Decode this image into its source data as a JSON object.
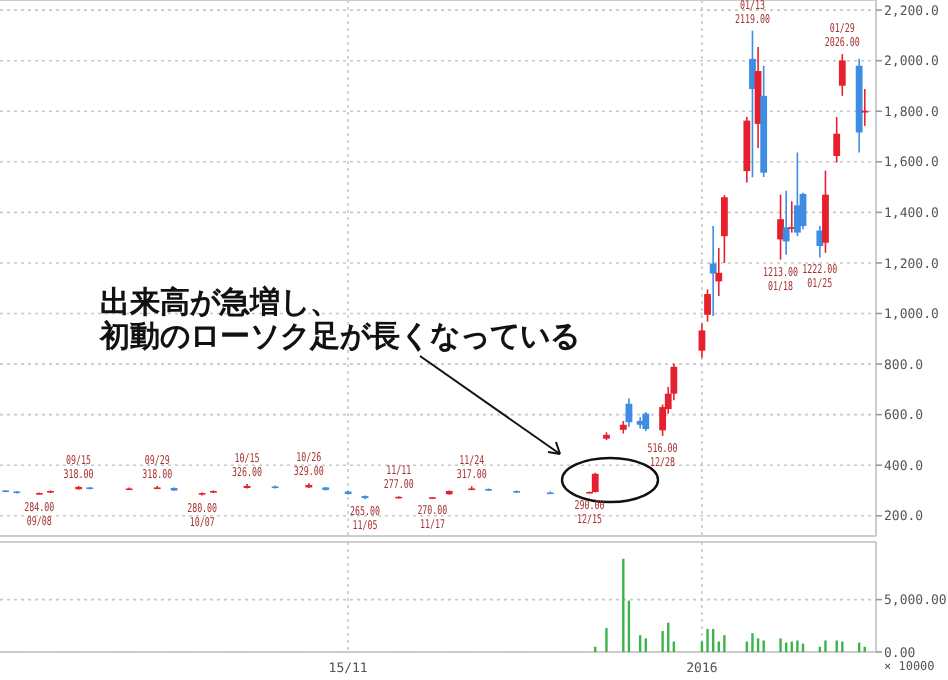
{
  "chart_data": [
    {
      "type": "candlestick",
      "xlim": [
        "2015-09-01",
        "2016-02-04"
      ],
      "xticks": [
        {
          "value": "2015-11-02",
          "label": null
        },
        {
          "value": "2016-01-04",
          "label": null
        }
      ],
      "ylim": [
        120,
        2240
      ],
      "yticks": [
        {
          "value": 200,
          "label": "200.0"
        },
        {
          "value": 400,
          "label": "400.0"
        },
        {
          "value": 600,
          "label": "600.0"
        },
        {
          "value": 800,
          "label": "800.0"
        },
        {
          "value": 1000,
          "label": "1,000.0"
        },
        {
          "value": 1200,
          "label": "1,200.0"
        },
        {
          "value": 1400,
          "label": "1,400.0"
        },
        {
          "value": 1600,
          "label": "1,600.0"
        },
        {
          "value": 1800,
          "label": "1,800.0"
        },
        {
          "value": 2000,
          "label": "2,000.0"
        },
        {
          "value": 2200,
          "label": "2,200.0"
        }
      ],
      "tick_labels": "y",
      "grid": true,
      "x": [
        "2015-09-02",
        "2015-09-04",
        "2015-09-08",
        "2015-09-10",
        "2015-09-15",
        "2015-09-17",
        "2015-09-24",
        "2015-09-29",
        "2015-10-02",
        "2015-10-07",
        "2015-10-09",
        "2015-10-15",
        "2015-10-20",
        "2015-10-26",
        "2015-10-29",
        "2015-11-02",
        "2015-11-05",
        "2015-11-11",
        "2015-11-17",
        "2015-11-20",
        "2015-11-24",
        "2015-11-27",
        "2015-12-02",
        "2015-12-08",
        "2015-12-15",
        "2015-12-16",
        "2015-12-18",
        "2015-12-21",
        "2015-12-22",
        "2015-12-24",
        "2015-12-25",
        "2015-12-28",
        "2015-12-29",
        "2015-12-30",
        "2016-01-04",
        "2016-01-05",
        "2016-01-06",
        "2016-01-07",
        "2016-01-08",
        "2016-01-12",
        "2016-01-13",
        "2016-01-14",
        "2016-01-15",
        "2016-01-18",
        "2016-01-19",
        "2016-01-20",
        "2016-01-21",
        "2016-01-22",
        "2016-01-25",
        "2016-01-26",
        "2016-01-28",
        "2016-01-29",
        "2016-02-01",
        "2016-02-02"
      ],
      "ohlc": [
        [
          300,
          302,
          294,
          296
        ],
        [
          296,
          298,
          288,
          290
        ],
        [
          288,
          292,
          284,
          290
        ],
        [
          292,
          300,
          290,
          298
        ],
        [
          305,
          318,
          303,
          314
        ],
        [
          312,
          314,
          304,
          306
        ],
        [
          306,
          312,
          302,
          308
        ],
        [
          308,
          318,
          306,
          312
        ],
        [
          310,
          312,
          298,
          300
        ],
        [
          284,
          292,
          280,
          290
        ],
        [
          292,
          300,
          290,
          298
        ],
        [
          310,
          326,
          308,
          318
        ],
        [
          316,
          320,
          308,
          310
        ],
        [
          312,
          329,
          310,
          322
        ],
        [
          312,
          314,
          300,
          302
        ],
        [
          296,
          298,
          284,
          286
        ],
        [
          278,
          280,
          265,
          270
        ],
        [
          272,
          277,
          268,
          275
        ],
        [
          272,
          274,
          270,
          273
        ],
        [
          285,
          300,
          283,
          298
        ],
        [
          305,
          317,
          303,
          308
        ],
        [
          306,
          308,
          298,
          300
        ],
        [
          298,
          300,
          290,
          294
        ],
        [
          292,
          296,
          288,
          290
        ],
        [
          292,
          296,
          290,
          294
        ],
        [
          294,
          370,
          292,
          366
        ],
        [
          505,
          530,
          500,
          520
        ],
        [
          540,
          575,
          525,
          560
        ],
        [
          643,
          665,
          551,
          570
        ],
        [
          575,
          590,
          545,
          560
        ],
        [
          604,
          610,
          535,
          543
        ],
        [
          538,
          640,
          516,
          630
        ],
        [
          622,
          710,
          604,
          683
        ],
        [
          683,
          802,
          657,
          789
        ],
        [
          853,
          960,
          825,
          933
        ],
        [
          995,
          1095,
          968,
          1077
        ],
        [
          1198,
          1346,
          990,
          1158
        ],
        [
          1127,
          1259,
          1069,
          1161
        ],
        [
          1306,
          1468,
          1200,
          1460
        ],
        [
          1563,
          1777,
          1518,
          1763
        ],
        [
          2007,
          2119,
          1539,
          1888
        ],
        [
          1750,
          2054,
          1655,
          1959
        ],
        [
          1861,
          1980,
          1540,
          1557
        ],
        [
          1293,
          1470,
          1213,
          1373
        ],
        [
          1341,
          1486,
          1232,
          1285
        ],
        [
          1335,
          1444,
          1320,
          1342
        ],
        [
          1428,
          1637,
          1306,
          1320
        ],
        [
          1473,
          1478,
          1333,
          1346
        ],
        [
          1328,
          1346,
          1222,
          1267
        ],
        [
          1280,
          1565,
          1240,
          1470
        ],
        [
          1623,
          1777,
          1597,
          1711
        ],
        [
          1901,
          2026,
          1861,
          2001
        ],
        [
          1980,
          2007,
          1637,
          1716
        ],
        [
          1795,
          1888,
          1742,
          1802
        ]
      ],
      "colors": [
        "#3d8de3",
        "#3d8de3",
        "#e5212f",
        "#e5212f",
        "#e5212f",
        "#3d8de3",
        "#e5212f",
        "#e5212f",
        "#3d8de3",
        "#e5212f",
        "#e5212f",
        "#e5212f",
        "#3d8de3",
        "#e5212f",
        "#3d8de3",
        "#3d8de3",
        "#3d8de3",
        "#e5212f",
        "#e5212f",
        "#e5212f",
        "#e5212f",
        "#3d8de3",
        "#3d8de3",
        "#3d8de3",
        "#e5212f",
        "#e5212f",
        "#e5212f",
        "#e5212f",
        "#3d8de3",
        "#3d8de3",
        "#3d8de3",
        "#e5212f",
        "#e5212f",
        "#e5212f",
        "#e5212f",
        "#e5212f",
        "#3d8de3",
        "#e5212f",
        "#e5212f",
        "#e5212f",
        "#3d8de3",
        "#e5212f",
        "#3d8de3",
        "#e5212f",
        "#3d8de3",
        "#e5212f",
        "#3d8de3",
        "#3d8de3",
        "#3d8de3",
        "#e5212f",
        "#e5212f",
        "#e5212f",
        "#3d8de3",
        "#e5212f"
      ],
      "annotations": [
        "出来高が急増し、",
        "初動のローソク足が長くなっている",
        {
          "text": "284.00\n09/08",
          "x": "2015-09-08",
          "y": 284
        },
        {
          "text": "09/15\n318.00",
          "x": "2015-09-15",
          "y": 318
        },
        {
          "text": "09/29\n318.00",
          "x": "2015-09-29",
          "y": 318
        },
        {
          "text": "280.00\n10/07",
          "x": "2015-10-07",
          "y": 280
        },
        {
          "text": "10/15\n326.00",
          "x": "2015-10-15",
          "y": 326
        },
        {
          "text": "10/26\n329.00",
          "x": "2015-10-26",
          "y": 329
        },
        {
          "text": "265.00\n11/05",
          "x": "2015-11-05",
          "y": 265
        },
        {
          "text": "11/11\n277.00",
          "x": "2015-11-11",
          "y": 277
        },
        {
          "text": "270.00\n11/17",
          "x": "2015-11-17",
          "y": 270
        },
        {
          "text": "11/24\n317.00",
          "x": "2015-11-24",
          "y": 317
        },
        {
          "text": "290.00\n12/15",
          "x": "2015-12-15",
          "y": 290
        },
        {
          "text": "516.00\n12/28",
          "x": "2015-12-28",
          "y": 516
        },
        {
          "text": "01/13\n2119.00",
          "x": "2016-01-13",
          "y": 2119
        },
        {
          "text": "1213.00\n01/18",
          "x": "2016-01-18",
          "y": 1213
        },
        {
          "text": "1222.00\n01/25",
          "x": "2016-01-25",
          "y": 1222
        },
        {
          "text": "01/29\n2026.00",
          "x": "2016-01-29",
          "y": 2026
        }
      ]
    },
    {
      "type": "bar",
      "xlim": [
        "2015-09-01",
        "2016-02-04"
      ],
      "xticks": [
        {
          "value": "2015-11-02",
          "label": "15/11"
        },
        {
          "value": "2016-01-04",
          "label": "2016"
        }
      ],
      "ylim": [
        0,
        10500
      ],
      "yticks": [
        {
          "value": 0,
          "label": "0.00"
        },
        {
          "value": 5000,
          "label": "5,000.00"
        }
      ],
      "grid": true,
      "color": "#3cb44b",
      "x": [
        "2015-12-16",
        "2015-12-18",
        "2015-12-21",
        "2015-12-22",
        "2015-12-24",
        "2015-12-25",
        "2015-12-28",
        "2015-12-29",
        "2015-12-30",
        "2016-01-04",
        "2016-01-05",
        "2016-01-06",
        "2016-01-07",
        "2016-01-08",
        "2016-01-12",
        "2016-01-13",
        "2016-01-14",
        "2016-01-15",
        "2016-01-18",
        "2016-01-19",
        "2016-01-20",
        "2016-01-21",
        "2016-01-22",
        "2016-01-25",
        "2016-01-26",
        "2016-01-28",
        "2016-01-29",
        "2016-02-01",
        "2016-02-02"
      ],
      "values": [
        500,
        2300,
        8900,
        4900,
        1600,
        1300,
        2000,
        2800,
        1000,
        1000,
        2200,
        2200,
        1000,
        1600,
        1000,
        1800,
        1300,
        1100,
        1300,
        900,
        1000,
        1100,
        800,
        500,
        1100,
        1100,
        1000,
        900,
        500
      ],
      "annotations": [
        "× 10000"
      ]
    }
  ]
}
